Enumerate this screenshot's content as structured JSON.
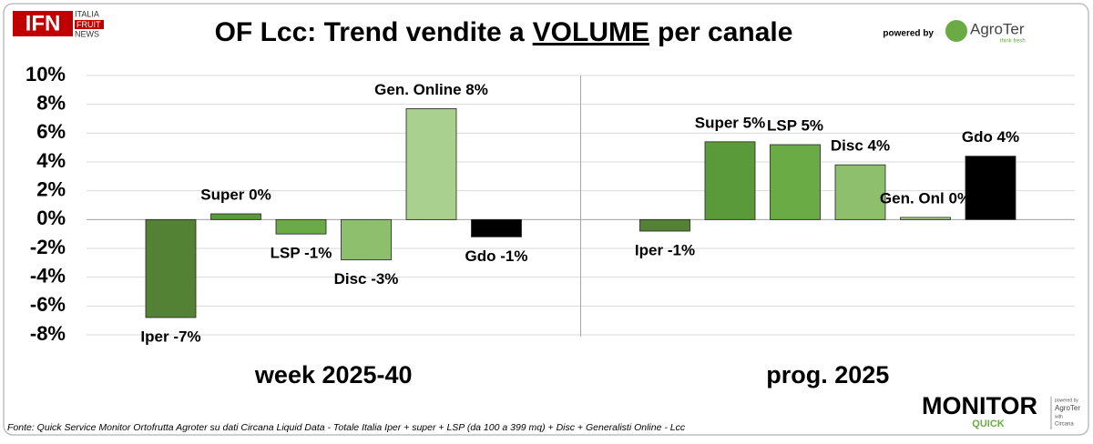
{
  "header": {
    "logo_main": "IFN",
    "logo_lines": [
      "ITALIA",
      "FRUIT",
      "NEWS"
    ],
    "powered_by": "powered by",
    "brand": "AgroTer",
    "brand_tagline": "think fresh"
  },
  "chart_data": {
    "type": "bar",
    "title_parts": [
      "OF Lcc: Trend vendite a",
      "VOLUME",
      "per canale"
    ],
    "categories": [
      "week 2025-40",
      "prog. 2025"
    ],
    "series": [
      {
        "color": "#548235",
        "values": [
          -6.8,
          -0.8
        ],
        "value_labels": [
          "Iper -7%",
          "Iper -1%"
        ]
      },
      {
        "color": "#5b9a3b",
        "values": [
          0.4,
          5.4
        ],
        "value_labels": [
          "Super 0%",
          "Super 5%"
        ]
      },
      {
        "color": "#6aab46",
        "values": [
          -1.0,
          5.2
        ],
        "value_labels": [
          "LSP -1%",
          "LSP 5%"
        ]
      },
      {
        "color": "#8dbf6c",
        "values": [
          -2.8,
          3.8
        ],
        "value_labels": [
          "Disc -3%",
          "Disc 4%"
        ]
      },
      {
        "color": "#a9d08e",
        "values": [
          7.7,
          0.15
        ],
        "value_labels": [
          "Gen. Online 8%",
          "Gen. Onl 0%"
        ]
      },
      {
        "color": "#000000",
        "values": [
          -1.2,
          4.4
        ],
        "value_labels": [
          "Gdo -1%",
          "Gdo 4%"
        ]
      }
    ],
    "ylim": [
      -8,
      10
    ],
    "yticks": [
      {
        "value": -8,
        "label": "-8%"
      },
      {
        "value": -6,
        "label": "-6%"
      },
      {
        "value": -4,
        "label": "-4%"
      },
      {
        "value": -2,
        "label": "-2%"
      },
      {
        "value": 0,
        "label": "0%"
      },
      {
        "value": 2,
        "label": "2%"
      },
      {
        "value": 4,
        "label": "4%"
      },
      {
        "value": 6,
        "label": "6%"
      },
      {
        "value": 8,
        "label": "8%"
      },
      {
        "value": 10,
        "label": "10%"
      }
    ],
    "grid": true
  },
  "footer": {
    "source": "Fonte: Quick Service Monitor Ortofrutta Agroter su dati Circana Liquid Data - Totale Italia Iper + super + LSP (da 100 a 399 mq) + Disc + Generalisti Online - Lcc",
    "monitor": "MONITOR",
    "quick": "QUICK",
    "powered_by": "powered by",
    "brand": "AgroTer",
    "with": "with",
    "partner": "Circana"
  }
}
